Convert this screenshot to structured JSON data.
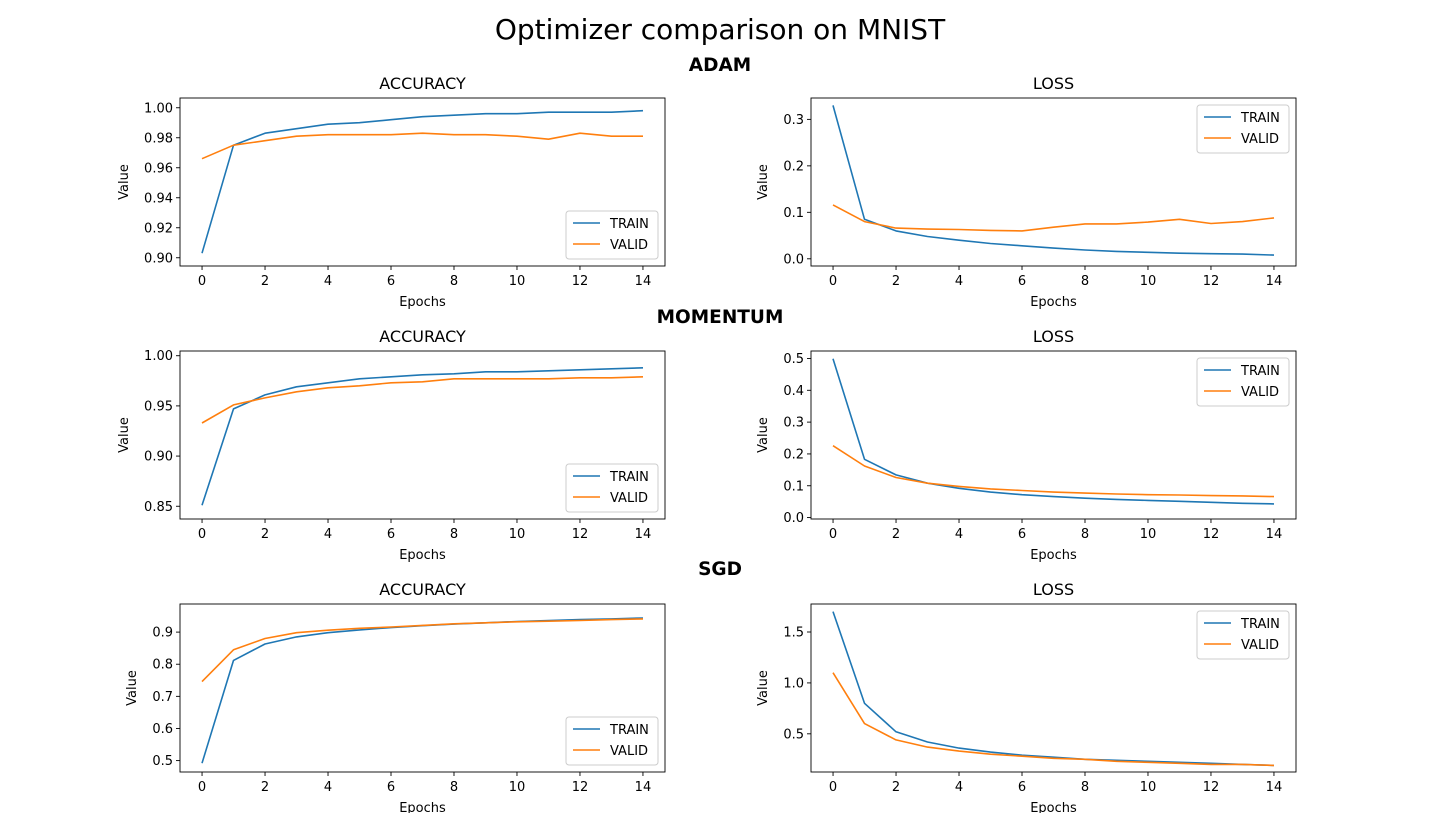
{
  "figure": {
    "title": "Optimizer comparison on MNIST",
    "row_titles": [
      "ADAM",
      "MOMENTUM",
      "SGD"
    ]
  },
  "colors": {
    "train": "#1f77b4",
    "valid": "#ff7f0e"
  },
  "chart_data": [
    {
      "group": "ADAM",
      "type": "line",
      "title": "ACCURACY",
      "xlabel": "Epochs",
      "ylabel": "Value",
      "x": [
        0,
        1,
        2,
        3,
        4,
        5,
        6,
        7,
        8,
        9,
        10,
        11,
        12,
        13,
        14
      ],
      "xticks": [
        0,
        2,
        4,
        6,
        8,
        10,
        12,
        14
      ],
      "xlim": [
        -0.7,
        14.7
      ],
      "yticks": [
        "0.90",
        "0.92",
        "0.94",
        "0.96",
        "0.98",
        "1.00"
      ],
      "ylim": [
        0.8945,
        1.0065
      ],
      "grid": false,
      "legend_position": "bottom-right",
      "series": [
        {
          "name": "TRAIN",
          "values": [
            0.903,
            0.975,
            0.983,
            0.986,
            0.989,
            0.99,
            0.992,
            0.994,
            0.995,
            0.996,
            0.996,
            0.997,
            0.997,
            0.997,
            0.998
          ]
        },
        {
          "name": "VALID",
          "values": [
            0.966,
            0.975,
            0.978,
            0.981,
            0.982,
            0.982,
            0.982,
            0.983,
            0.982,
            0.982,
            0.981,
            0.979,
            0.983,
            0.981,
            0.981
          ]
        }
      ]
    },
    {
      "group": "ADAM",
      "type": "line",
      "title": "LOSS",
      "xlabel": "Epochs",
      "ylabel": "Value",
      "x": [
        0,
        1,
        2,
        3,
        4,
        5,
        6,
        7,
        8,
        9,
        10,
        11,
        12,
        13,
        14
      ],
      "xticks": [
        0,
        2,
        4,
        6,
        8,
        10,
        12,
        14
      ],
      "xlim": [
        -0.7,
        14.7
      ],
      "yticks": [
        "0.0",
        "0.1",
        "0.2",
        "0.3"
      ],
      "ylim": [
        -0.0155,
        0.346
      ],
      "grid": false,
      "legend_position": "top-right",
      "series": [
        {
          "name": "TRAIN",
          "values": [
            0.33,
            0.085,
            0.06,
            0.048,
            0.04,
            0.033,
            0.028,
            0.023,
            0.019,
            0.016,
            0.014,
            0.012,
            0.011,
            0.01,
            0.008
          ]
        },
        {
          "name": "VALID",
          "values": [
            0.116,
            0.08,
            0.066,
            0.064,
            0.063,
            0.061,
            0.06,
            0.068,
            0.075,
            0.075,
            0.079,
            0.085,
            0.076,
            0.08,
            0.088
          ]
        }
      ]
    },
    {
      "group": "MOMENTUM",
      "type": "line",
      "title": "ACCURACY",
      "xlabel": "Epochs",
      "ylabel": "Value",
      "x": [
        0,
        1,
        2,
        3,
        4,
        5,
        6,
        7,
        8,
        9,
        10,
        11,
        12,
        13,
        14
      ],
      "xticks": [
        0,
        2,
        4,
        6,
        8,
        10,
        12,
        14
      ],
      "xlim": [
        -0.7,
        14.7
      ],
      "yticks": [
        "0.85",
        "0.90",
        "0.95",
        "1.00"
      ],
      "ylim": [
        0.8373,
        1.0047
      ],
      "grid": false,
      "legend_position": "bottom-right",
      "series": [
        {
          "name": "TRAIN",
          "values": [
            0.851,
            0.947,
            0.961,
            0.969,
            0.973,
            0.977,
            0.979,
            0.981,
            0.982,
            0.984,
            0.984,
            0.985,
            0.986,
            0.987,
            0.988
          ]
        },
        {
          "name": "VALID",
          "values": [
            0.933,
            0.951,
            0.958,
            0.964,
            0.968,
            0.97,
            0.973,
            0.974,
            0.977,
            0.977,
            0.977,
            0.977,
            0.978,
            0.978,
            0.979
          ]
        }
      ]
    },
    {
      "group": "MOMENTUM",
      "type": "line",
      "title": "LOSS",
      "xlabel": "Epochs",
      "ylabel": "Value",
      "x": [
        0,
        1,
        2,
        3,
        4,
        5,
        6,
        7,
        8,
        9,
        10,
        11,
        12,
        13,
        14
      ],
      "xticks": [
        0,
        2,
        4,
        6,
        8,
        10,
        12,
        14
      ],
      "xlim": [
        -0.7,
        14.7
      ],
      "yticks": [
        "0.0",
        "0.1",
        "0.2",
        "0.3",
        "0.4",
        "0.5"
      ],
      "ylim": [
        -0.0045,
        0.5235
      ],
      "grid": false,
      "legend_position": "top-right",
      "series": [
        {
          "name": "TRAIN",
          "values": [
            0.499,
            0.183,
            0.134,
            0.108,
            0.092,
            0.08,
            0.072,
            0.066,
            0.061,
            0.057,
            0.054,
            0.051,
            0.048,
            0.045,
            0.043
          ]
        },
        {
          "name": "VALID",
          "values": [
            0.226,
            0.162,
            0.126,
            0.108,
            0.098,
            0.09,
            0.085,
            0.08,
            0.077,
            0.074,
            0.072,
            0.071,
            0.069,
            0.068,
            0.066
          ]
        }
      ]
    },
    {
      "group": "SGD",
      "type": "line",
      "title": "ACCURACY",
      "xlabel": "Epochs",
      "ylabel": "Value",
      "x": [
        0,
        1,
        2,
        3,
        4,
        5,
        6,
        7,
        8,
        9,
        10,
        11,
        12,
        13,
        14
      ],
      "xticks": [
        0,
        2,
        4,
        6,
        8,
        10,
        12,
        14
      ],
      "xlim": [
        -0.7,
        14.7
      ],
      "yticks": [
        "0.5",
        "0.6",
        "0.7",
        "0.8",
        "0.9"
      ],
      "ylim": [
        0.4645,
        0.9875
      ],
      "grid": false,
      "legend_position": "bottom-right",
      "series": [
        {
          "name": "TRAIN",
          "values": [
            0.492,
            0.812,
            0.863,
            0.885,
            0.898,
            0.907,
            0.914,
            0.92,
            0.925,
            0.929,
            0.933,
            0.936,
            0.939,
            0.941,
            0.944
          ]
        },
        {
          "name": "VALID",
          "values": [
            0.746,
            0.845,
            0.88,
            0.898,
            0.906,
            0.912,
            0.916,
            0.921,
            0.926,
            0.929,
            0.932,
            0.934,
            0.936,
            0.939,
            0.941
          ]
        }
      ]
    },
    {
      "group": "SGD",
      "type": "line",
      "title": "LOSS",
      "xlabel": "Epochs",
      "ylabel": "Value",
      "x": [
        0,
        1,
        2,
        3,
        4,
        5,
        6,
        7,
        8,
        9,
        10,
        11,
        12,
        13,
        14
      ],
      "xticks": [
        0,
        2,
        4,
        6,
        8,
        10,
        12,
        14
      ],
      "xlim": [
        -0.7,
        14.7
      ],
      "yticks": [
        "0.5",
        "1.0",
        "1.5"
      ],
      "ylim": [
        0.125,
        1.775
      ],
      "grid": false,
      "legend_position": "top-right",
      "series": [
        {
          "name": "TRAIN",
          "values": [
            1.7,
            0.8,
            0.52,
            0.42,
            0.36,
            0.32,
            0.29,
            0.27,
            0.25,
            0.24,
            0.23,
            0.22,
            0.21,
            0.2,
            0.19
          ]
        },
        {
          "name": "VALID",
          "values": [
            1.1,
            0.6,
            0.44,
            0.37,
            0.33,
            0.3,
            0.28,
            0.26,
            0.25,
            0.23,
            0.22,
            0.21,
            0.2,
            0.2,
            0.19
          ]
        }
      ]
    }
  ]
}
